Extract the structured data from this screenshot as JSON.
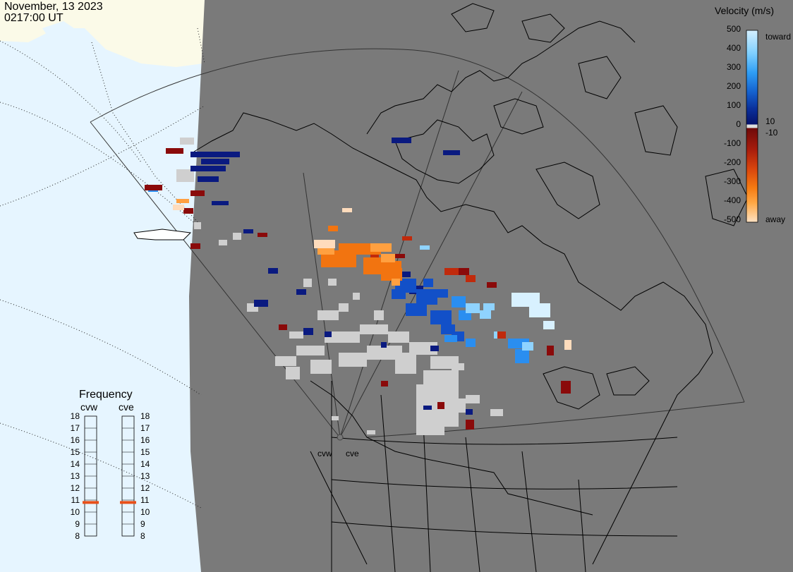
{
  "header": {
    "date": "November, 13 2023",
    "time": "0217:00 UT"
  },
  "velocity_scale": {
    "title": "Velocity (m/s)",
    "ticks": [
      "500",
      "400",
      "300",
      "200",
      "100",
      "0",
      "-100",
      "-200",
      "-300",
      "-400",
      "-500"
    ],
    "positive_small": "10",
    "negative_small": "-10",
    "toward_label": "toward",
    "away_label": "away"
  },
  "frequency_panel": {
    "title": "Frequency",
    "radars": [
      {
        "name": "cvw",
        "value_mhz": 10.8
      },
      {
        "name": "cve",
        "value_mhz": 10.8
      }
    ],
    "ticks": [
      "18",
      "17",
      "16",
      "15",
      "14",
      "13",
      "12",
      "11",
      "10",
      "9",
      "8"
    ]
  },
  "map_labels": {
    "radar_west": "cvw",
    "radar_east": "cve"
  },
  "colors": {
    "background_gray": "#7a7a7a",
    "ocean": "#e6f5ff",
    "land_outside": "#fbfae8",
    "ground_scatter": "#cccccc",
    "marker": "#e8501a"
  }
}
